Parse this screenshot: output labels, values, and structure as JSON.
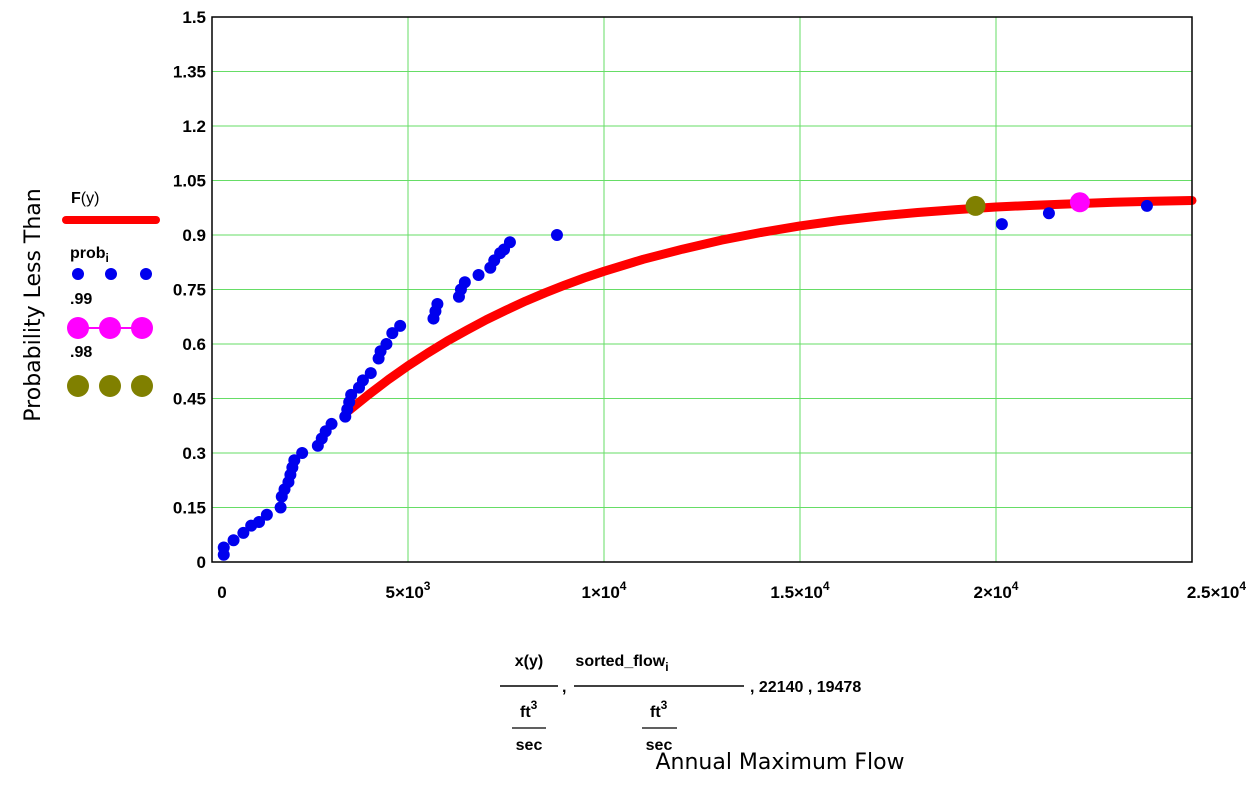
{
  "chart_data": {
    "type": "scatter",
    "ylabel": "Probability Less Than",
    "xlabel": "Annual Maximum Flow",
    "xlim": [
      0,
      25000
    ],
    "ylim": [
      0,
      1.5
    ],
    "x_ticks": [
      {
        "value": 0,
        "mant": "0",
        "exp": ""
      },
      {
        "value": 5000,
        "mant": "5×10",
        "exp": "3"
      },
      {
        "value": 10000,
        "mant": "1×10",
        "exp": "4"
      },
      {
        "value": 15000,
        "mant": "1.5×10",
        "exp": "4"
      },
      {
        "value": 20000,
        "mant": "2×10",
        "exp": "4"
      },
      {
        "value": 25000,
        "mant": "2.5×10",
        "exp": "4"
      }
    ],
    "y_ticks": [
      {
        "value": 0,
        "label": "0"
      },
      {
        "value": 0.15,
        "label": "0.15"
      },
      {
        "value": 0.3,
        "label": "0.3"
      },
      {
        "value": 0.45,
        "label": "0.45"
      },
      {
        "value": 0.6,
        "label": "0.6"
      },
      {
        "value": 0.75,
        "label": "0.75"
      },
      {
        "value": 0.9,
        "label": "0.9"
      },
      {
        "value": 1.05,
        "label": "1.05"
      },
      {
        "value": 1.2,
        "label": "1.2"
      },
      {
        "value": 1.35,
        "label": "1.35"
      },
      {
        "value": 1.5,
        "label": "1.5"
      }
    ],
    "grid": true,
    "legend_position": "left",
    "x_expression": {
      "num1": "x(y)",
      "den1": "ft",
      "den1_exp": "3",
      "den1_bottom": "sec",
      "num2": "sorted_flow",
      "num2_sub": "i",
      "den2": "ft",
      "den2_exp": "3",
      "den2_bottom": "sec",
      "sep": ",",
      "tail": ", 22140 , 19478"
    },
    "series": [
      {
        "name": "F(y)",
        "name_main": "F",
        "name_paren": "(y)",
        "style": "line",
        "color": "#ff0000",
        "points": [
          [
            3450,
            0.413
          ],
          [
            4000,
            0.461
          ],
          [
            4500,
            0.502
          ],
          [
            5000,
            0.54
          ],
          [
            5500,
            0.575
          ],
          [
            6000,
            0.608
          ],
          [
            6500,
            0.638
          ],
          [
            7000,
            0.667
          ],
          [
            7500,
            0.693
          ],
          [
            8000,
            0.718
          ],
          [
            8500,
            0.741
          ],
          [
            9000,
            0.762
          ],
          [
            9500,
            0.782
          ],
          [
            10000,
            0.8
          ],
          [
            11000,
            0.833
          ],
          [
            12000,
            0.861
          ],
          [
            13000,
            0.886
          ],
          [
            14000,
            0.907
          ],
          [
            15000,
            0.925
          ],
          [
            16000,
            0.94
          ],
          [
            17000,
            0.952
          ],
          [
            18000,
            0.962
          ],
          [
            19000,
            0.97
          ],
          [
            20000,
            0.977
          ],
          [
            21000,
            0.982
          ],
          [
            22000,
            0.986
          ],
          [
            23000,
            0.99
          ],
          [
            24000,
            0.993
          ],
          [
            25000,
            0.995
          ]
        ]
      },
      {
        "name": "prob_i",
        "name_main": "prob",
        "name_sub": "i",
        "style": "points",
        "color": "#0000ee",
        "points": [
          [
            300,
            0.02
          ],
          [
            300,
            0.04
          ],
          [
            550,
            0.06
          ],
          [
            800,
            0.08
          ],
          [
            1000,
            0.1
          ],
          [
            1200,
            0.11
          ],
          [
            1400,
            0.13
          ],
          [
            1750,
            0.15
          ],
          [
            1780,
            0.18
          ],
          [
            1850,
            0.2
          ],
          [
            1950,
            0.22
          ],
          [
            2000,
            0.24
          ],
          [
            2050,
            0.26
          ],
          [
            2100,
            0.28
          ],
          [
            2300,
            0.3
          ],
          [
            2700,
            0.32
          ],
          [
            2800,
            0.34
          ],
          [
            2900,
            0.36
          ],
          [
            3050,
            0.38
          ],
          [
            3400,
            0.4
          ],
          [
            3450,
            0.42
          ],
          [
            3500,
            0.44
          ],
          [
            3550,
            0.46
          ],
          [
            3750,
            0.48
          ],
          [
            3850,
            0.5
          ],
          [
            4050,
            0.52
          ],
          [
            4250,
            0.56
          ],
          [
            4300,
            0.58
          ],
          [
            4450,
            0.6
          ],
          [
            4600,
            0.63
          ],
          [
            4800,
            0.65
          ],
          [
            5650,
            0.67
          ],
          [
            5700,
            0.69
          ],
          [
            5750,
            0.71
          ],
          [
            6300,
            0.73
          ],
          [
            6350,
            0.75
          ],
          [
            6450,
            0.77
          ],
          [
            6800,
            0.79
          ],
          [
            7100,
            0.81
          ],
          [
            7200,
            0.83
          ],
          [
            7350,
            0.85
          ],
          [
            7450,
            0.86
          ],
          [
            7600,
            0.88
          ],
          [
            8800,
            0.9
          ],
          [
            20150,
            0.93
          ],
          [
            21350,
            0.96
          ],
          [
            23850,
            0.98
          ]
        ]
      },
      {
        "name": ".99",
        "style": "points",
        "color": "#ff00ff",
        "points": [
          [
            22140,
            0.99
          ]
        ]
      },
      {
        "name": ".98",
        "style": "points",
        "color": "#808000",
        "points": [
          [
            19478,
            0.98
          ]
        ]
      }
    ]
  }
}
